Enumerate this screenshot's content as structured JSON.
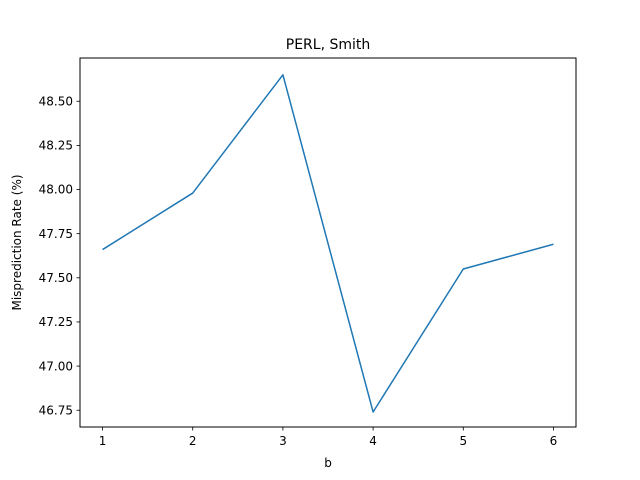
{
  "chart_data": {
    "type": "line",
    "title": "PERL, Smith",
    "xlabel": "b",
    "ylabel": "Misprediction Rate (%)",
    "x": [
      1,
      2,
      3,
      4,
      5,
      6
    ],
    "series": [
      {
        "values": [
          47.66,
          47.98,
          48.65,
          46.74,
          47.55,
          47.69
        ],
        "color": "#1f77b4"
      }
    ],
    "xlim": [
      0.75,
      6.25
    ],
    "ylim": [
      46.655,
      48.745
    ],
    "xticks": [
      1,
      2,
      3,
      4,
      5,
      6
    ],
    "xtick_labels": [
      "1",
      "2",
      "3",
      "4",
      "5",
      "6"
    ],
    "yticks": [
      46.75,
      47.0,
      47.25,
      47.5,
      47.75,
      48.0,
      48.25,
      48.5
    ],
    "ytick_labels": [
      "46.75",
      "47.00",
      "47.25",
      "47.50",
      "47.75",
      "48.00",
      "48.25",
      "48.50"
    ],
    "grid": false,
    "legend": "none"
  }
}
